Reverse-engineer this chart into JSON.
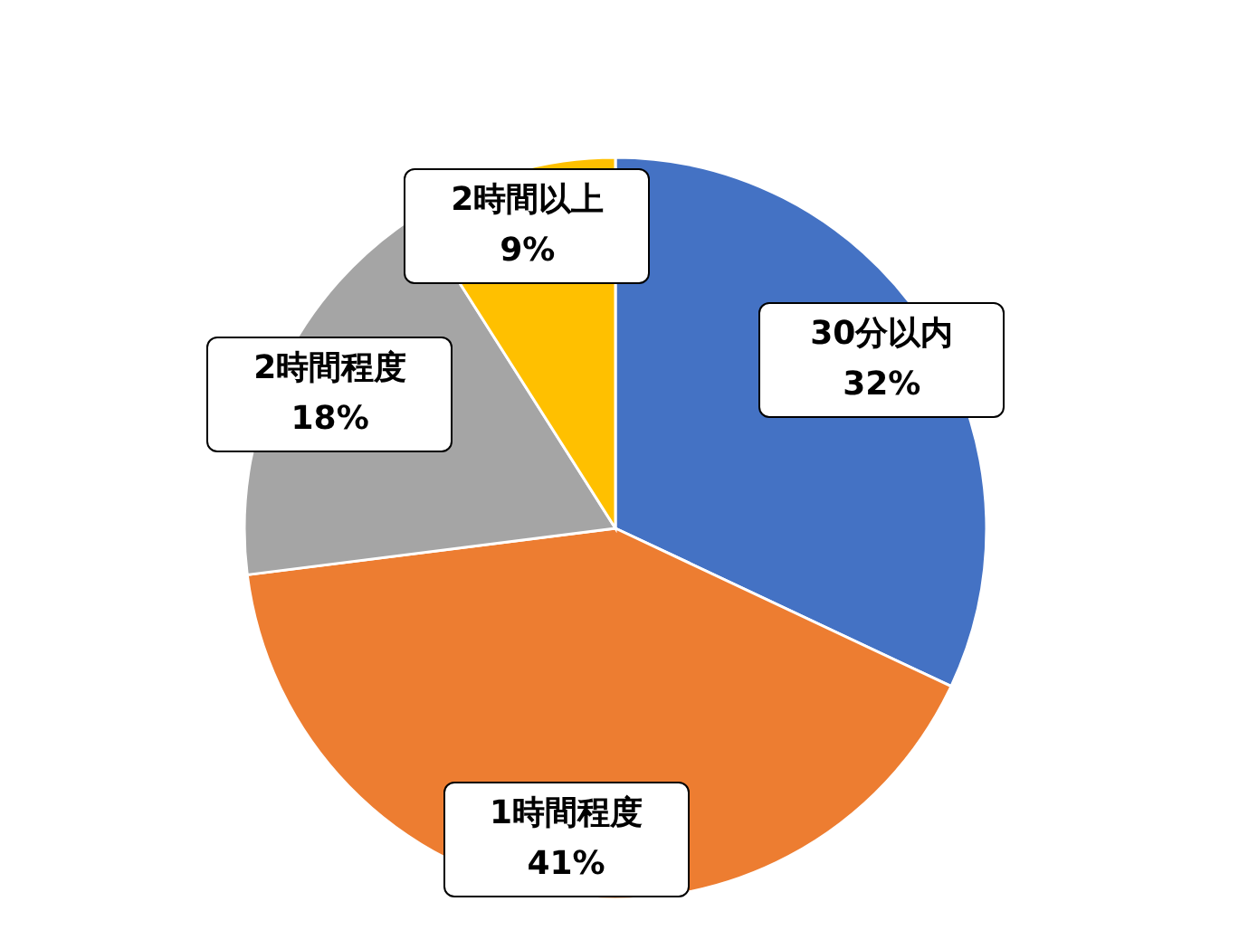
{
  "chart_data": {
    "type": "pie",
    "categories": [
      "30分以内",
      "1時間程度",
      "2時間程度",
      "2時間以上"
    ],
    "values": [
      32,
      41,
      18,
      9
    ],
    "colors": [
      "#4472c4",
      "#ed7d31",
      "#a5a5a5",
      "#ffc000"
    ],
    "value_labels": [
      "32%",
      "41%",
      "18%",
      "9%"
    ]
  }
}
